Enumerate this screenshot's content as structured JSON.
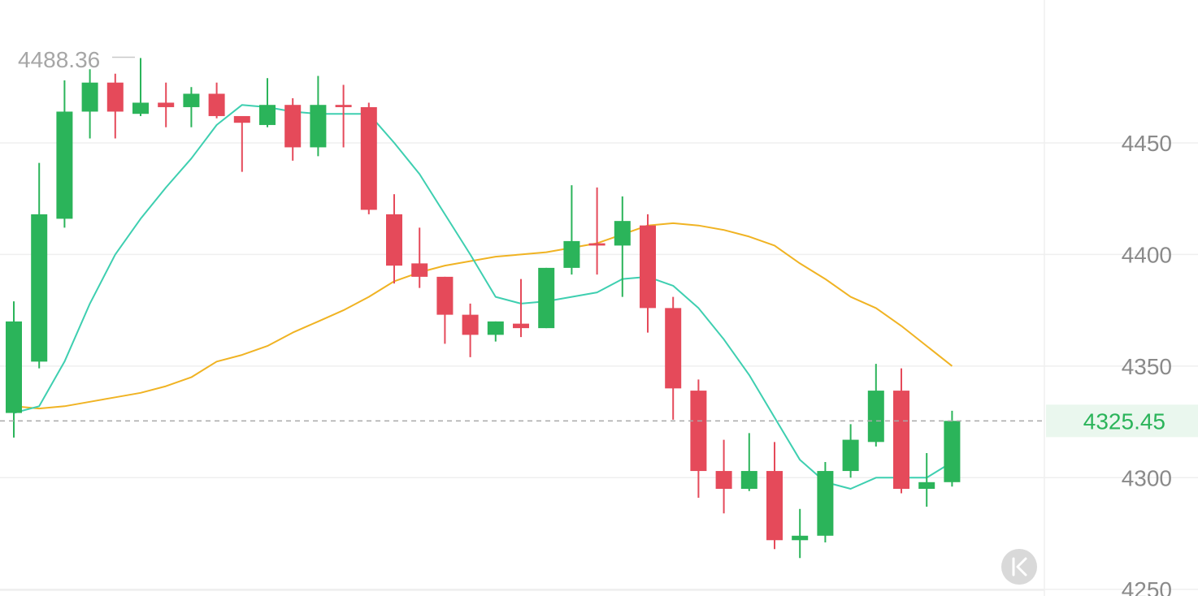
{
  "chart_data": {
    "type": "candlestick",
    "y_ticks": [
      "4450",
      "4400",
      "4350",
      "4300",
      "4250"
    ],
    "y_tick_values": [
      4450,
      4400,
      4350,
      4300,
      4250
    ],
    "ylim": [
      4247,
      4514
    ],
    "grid": true,
    "current_price": 4325.45,
    "current_price_label": "4325.45",
    "high_label": "4488.36",
    "high_value": 4488.36,
    "colors": {
      "up": "#2bb45a",
      "down": "#e54a5a",
      "ma_short": "#3ecfb0",
      "ma_long": "#f0b323",
      "price_text": "#2bb45a",
      "price_bg": "#eaf7ee",
      "grid": "#efefef"
    },
    "candles": [
      {
        "o": 4329,
        "c": 4370,
        "h": 4379,
        "l": 4318
      },
      {
        "o": 4352,
        "c": 4418,
        "h": 4441,
        "l": 4349
      },
      {
        "o": 4416,
        "c": 4464,
        "h": 4478,
        "l": 4412
      },
      {
        "o": 4464,
        "c": 4477,
        "h": 4483,
        "l": 4452
      },
      {
        "o": 4477,
        "c": 4464,
        "h": 4481,
        "l": 4452
      },
      {
        "o": 4463,
        "c": 4468,
        "h": 4488,
        "l": 4462
      },
      {
        "o": 4468,
        "c": 4466,
        "h": 4477,
        "l": 4457
      },
      {
        "o": 4466,
        "c": 4472,
        "h": 4475,
        "l": 4457
      },
      {
        "o": 4472,
        "c": 4462,
        "h": 4477,
        "l": 4461
      },
      {
        "o": 4462,
        "c": 4459,
        "h": 4462,
        "l": 4437
      },
      {
        "o": 4458,
        "c": 4467,
        "h": 4479,
        "l": 4457
      },
      {
        "o": 4467,
        "c": 4448,
        "h": 4470,
        "l": 4442
      },
      {
        "o": 4448,
        "c": 4467,
        "h": 4480,
        "l": 4444
      },
      {
        "o": 4467,
        "c": 4466,
        "h": 4476,
        "l": 4448
      },
      {
        "o": 4466,
        "c": 4420,
        "h": 4468,
        "l": 4418
      },
      {
        "o": 4418,
        "c": 4395,
        "h": 4427,
        "l": 4387
      },
      {
        "o": 4396,
        "c": 4390,
        "h": 4412,
        "l": 4385
      },
      {
        "o": 4390,
        "c": 4373,
        "h": 4390,
        "l": 4360
      },
      {
        "o": 4373,
        "c": 4364,
        "h": 4378,
        "l": 4354
      },
      {
        "o": 4364,
        "c": 4370,
        "h": 4370,
        "l": 4361
      },
      {
        "o": 4369,
        "c": 4367,
        "h": 4389,
        "l": 4363
      },
      {
        "o": 4367,
        "c": 4394,
        "h": 4394,
        "l": 4367
      },
      {
        "o": 4394,
        "c": 4406,
        "h": 4431,
        "l": 4391
      },
      {
        "o": 4405,
        "c": 4404,
        "h": 4430,
        "l": 4391
      },
      {
        "o": 4404,
        "c": 4415,
        "h": 4426,
        "l": 4381
      },
      {
        "o": 4413,
        "c": 4376,
        "h": 4418,
        "l": 4365
      },
      {
        "o": 4376,
        "c": 4340,
        "h": 4381,
        "l": 4326
      },
      {
        "o": 4339,
        "c": 4303,
        "h": 4344,
        "l": 4291
      },
      {
        "o": 4303,
        "c": 4295,
        "h": 4317,
        "l": 4284
      },
      {
        "o": 4295,
        "c": 4303,
        "h": 4320,
        "l": 4294
      },
      {
        "o": 4303,
        "c": 4272,
        "h": 4316,
        "l": 4268
      },
      {
        "o": 4272,
        "c": 4274,
        "h": 4286,
        "l": 4264
      },
      {
        "o": 4274,
        "c": 4303,
        "h": 4307,
        "l": 4271
      },
      {
        "o": 4303,
        "c": 4317,
        "h": 4324,
        "l": 4300
      },
      {
        "o": 4316,
        "c": 4339,
        "h": 4351,
        "l": 4314
      },
      {
        "o": 4339,
        "c": 4295,
        "h": 4349,
        "l": 4293
      },
      {
        "o": 4295,
        "c": 4298,
        "h": 4311,
        "l": 4287
      },
      {
        "o": 4298,
        "c": 4325.45,
        "h": 4330,
        "l": 4296
      }
    ],
    "ma_short": [
      4329,
      4332,
      4352,
      4378,
      4400,
      4416,
      4430,
      4443,
      4458,
      4467,
      4466,
      4464,
      4463,
      4463,
      4463,
      4450,
      4436,
      4418,
      4400,
      4381,
      4378,
      4379,
      4381,
      4383,
      4389,
      4390,
      4386,
      4376,
      4362,
      4346,
      4327,
      4308,
      4298,
      4295,
      4300,
      4300,
      4300,
      4307
    ],
    "ma_long": [
      4332,
      4331,
      4332,
      4334,
      4336,
      4338,
      4341,
      4345,
      4352,
      4355,
      4359,
      4365,
      4370,
      4375,
      4381,
      4388,
      4392,
      4395,
      4397,
      4399,
      4400,
      4401,
      4403,
      4405,
      4409,
      4413,
      4414,
      4413,
      4411,
      4408,
      4404,
      4396,
      4389,
      4381,
      4376,
      4368,
      4359,
      4350
    ]
  },
  "ui": {
    "back_icon": "chevrons-left-icon"
  }
}
